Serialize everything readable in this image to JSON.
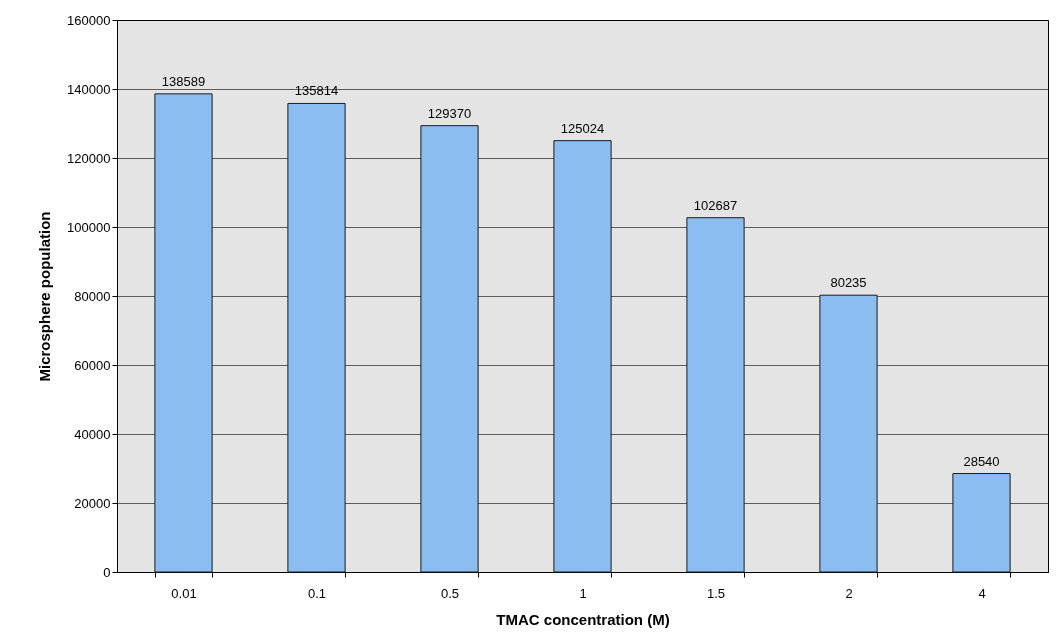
{
  "chart_data": {
    "type": "bar",
    "xlabel": "TMAC concentration (M)",
    "ylabel": "Microsphere population",
    "categories": [
      "0.01",
      "0.1",
      "0.5",
      "1",
      "1.5",
      "2",
      "4"
    ],
    "values": [
      138589,
      135814,
      129370,
      125024,
      102687,
      80235,
      28540
    ],
    "color": "#8cbdf0",
    "ylim": [
      0,
      160000
    ],
    "yticks": [
      0,
      20000,
      40000,
      60000,
      80000,
      100000,
      120000,
      140000,
      160000
    ],
    "grid": "y",
    "data_labels": true
  }
}
